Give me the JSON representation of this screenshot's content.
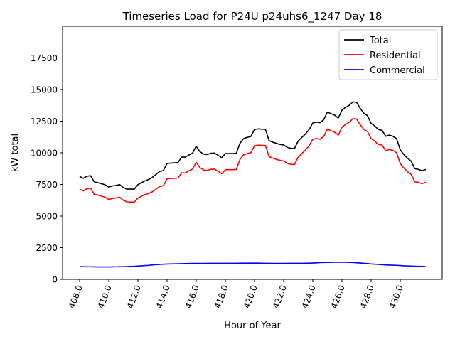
{
  "chart_data": {
    "type": "line",
    "title": "Timeseries Load for P24U p24uhs6_1247  Day 18",
    "xlabel": "Hour of Year",
    "ylabel": "kW total",
    "xlim": [
      406.83,
      432.88
    ],
    "ylim": [
      0,
      20000
    ],
    "x_start": 408,
    "x_step": 0.25,
    "xticks": [
      408,
      410,
      412,
      414,
      416,
      418,
      420,
      422,
      424,
      426,
      428,
      430
    ],
    "xtick_labels": [
      "408.0",
      "410.0",
      "412.0",
      "414.0",
      "416.0",
      "418.0",
      "420.0",
      "422.0",
      "424.0",
      "426.0",
      "428.0",
      "430.0"
    ],
    "yticks": [
      0,
      2500,
      5000,
      7500,
      10000,
      12500,
      15000,
      17500
    ],
    "ytick_labels": [
      "0",
      "2500",
      "5000",
      "7500",
      "10000",
      "12500",
      "15000",
      "17500"
    ],
    "grid": false,
    "legend_position": "top-right",
    "series": [
      {
        "name": "Total",
        "color": "#000000",
        "values": [
          8130,
          7990,
          8150,
          8190,
          7710,
          7640,
          7560,
          7470,
          7290,
          7380,
          7420,
          7490,
          7250,
          7130,
          7130,
          7130,
          7480,
          7640,
          7790,
          7900,
          8070,
          8300,
          8530,
          8600,
          9160,
          9190,
          9210,
          9230,
          9660,
          9660,
          9830,
          9980,
          10510,
          10100,
          9900,
          9870,
          9960,
          9980,
          9810,
          9610,
          9940,
          9940,
          9940,
          9960,
          10750,
          11120,
          11220,
          11290,
          11840,
          11890,
          11870,
          11850,
          10970,
          10840,
          10750,
          10660,
          10620,
          10430,
          10350,
          10350,
          10940,
          11220,
          11500,
          11840,
          12360,
          12430,
          12380,
          12620,
          13220,
          13090,
          12980,
          12750,
          13370,
          13600,
          13750,
          14030,
          13990,
          13520,
          13130,
          12940,
          12340,
          12120,
          11840,
          11780,
          11310,
          11400,
          11310,
          11120,
          10240,
          9870,
          9570,
          9340,
          8750,
          8690,
          8580,
          8690
        ]
      },
      {
        "name": "Residential",
        "color": "#ff0000",
        "values": [
          7130,
          6990,
          7160,
          7200,
          6725,
          6660,
          6580,
          6490,
          6310,
          6395,
          6430,
          6495,
          6250,
          6120,
          6110,
          6100,
          6430,
          6570,
          6700,
          6790,
          6930,
          7140,
          7350,
          7400,
          7950,
          7970,
          7985,
          8000,
          8420,
          8410,
          8575,
          8720,
          9250,
          8840,
          8640,
          8605,
          8695,
          8710,
          8540,
          8340,
          8670,
          8670,
          8670,
          8685,
          9475,
          9840,
          9940,
          10010,
          10560,
          10610,
          10595,
          10580,
          9705,
          9580,
          9490,
          9400,
          9360,
          9165,
          9085,
          9085,
          9670,
          9950,
          10225,
          10560,
          11070,
          11130,
          11060,
          11290,
          11880,
          11745,
          11630,
          11400,
          12020,
          12250,
          12410,
          12700,
          12680,
          12230,
          11860,
          11690,
          11120,
          10920,
          10660,
          10620,
          10170,
          10270,
          10190,
          10010,
          9150,
          8800,
          8510,
          8290,
          7710,
          7660,
          7560,
          7680
        ]
      },
      {
        "name": "Commercial",
        "color": "#0000ff",
        "values": [
          1000,
          1000,
          990,
          990,
          985,
          980,
          980,
          980,
          980,
          985,
          990,
          995,
          1000,
          1010,
          1020,
          1030,
          1050,
          1070,
          1090,
          1110,
          1140,
          1160,
          1180,
          1200,
          1210,
          1220,
          1225,
          1230,
          1240,
          1250,
          1255,
          1260,
          1260,
          1260,
          1260,
          1265,
          1265,
          1270,
          1270,
          1270,
          1270,
          1270,
          1270,
          1275,
          1275,
          1280,
          1280,
          1280,
          1280,
          1280,
          1275,
          1270,
          1265,
          1260,
          1260,
          1260,
          1260,
          1265,
          1265,
          1265,
          1270,
          1270,
          1275,
          1280,
          1290,
          1300,
          1320,
          1330,
          1340,
          1345,
          1350,
          1350,
          1350,
          1350,
          1340,
          1330,
          1310,
          1290,
          1270,
          1250,
          1220,
          1200,
          1180,
          1160,
          1140,
          1130,
          1120,
          1110,
          1090,
          1070,
          1060,
          1050,
          1040,
          1030,
          1020,
          1010
        ]
      }
    ]
  }
}
